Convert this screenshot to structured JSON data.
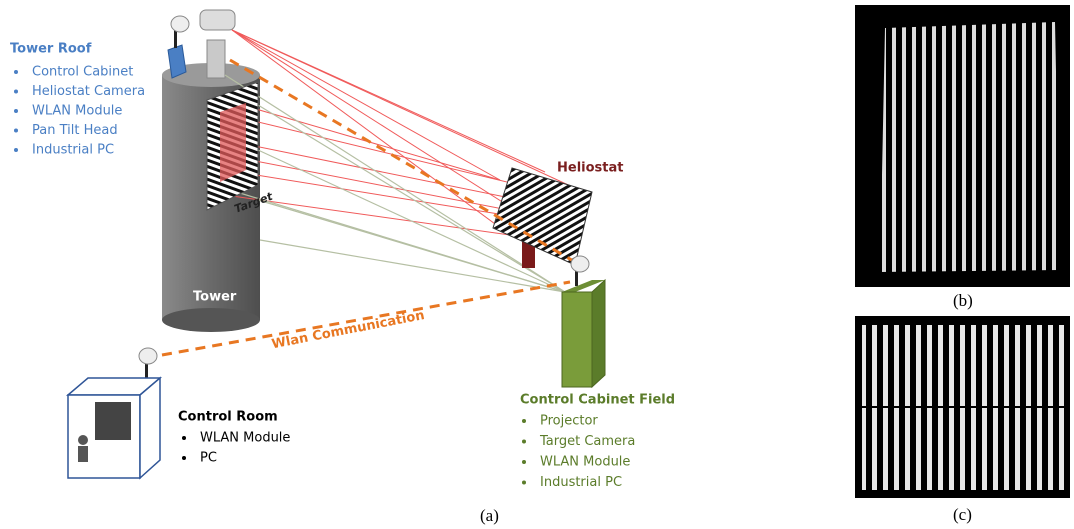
{
  "tower_roof": {
    "title": "Tower Roof",
    "items": [
      "Control Cabinet",
      "Heliostat Camera",
      "WLAN Module",
      "Pan Tilt Head",
      "Industrial PC"
    ]
  },
  "labels": {
    "target": "Target",
    "heliostat": "Heliostat",
    "tower": "Tower",
    "wlan": "Wlan Communication"
  },
  "control_room": {
    "title": "Control Room",
    "items": [
      "WLAN Module",
      "PC"
    ]
  },
  "control_cabinet_field": {
    "title": "Control Cabinet Field",
    "items": [
      "Projector",
      "Target Camera",
      "WLAN Module",
      "Industrial PC"
    ]
  },
  "captions": [
    "(a)",
    "(b)",
    "(c)"
  ]
}
